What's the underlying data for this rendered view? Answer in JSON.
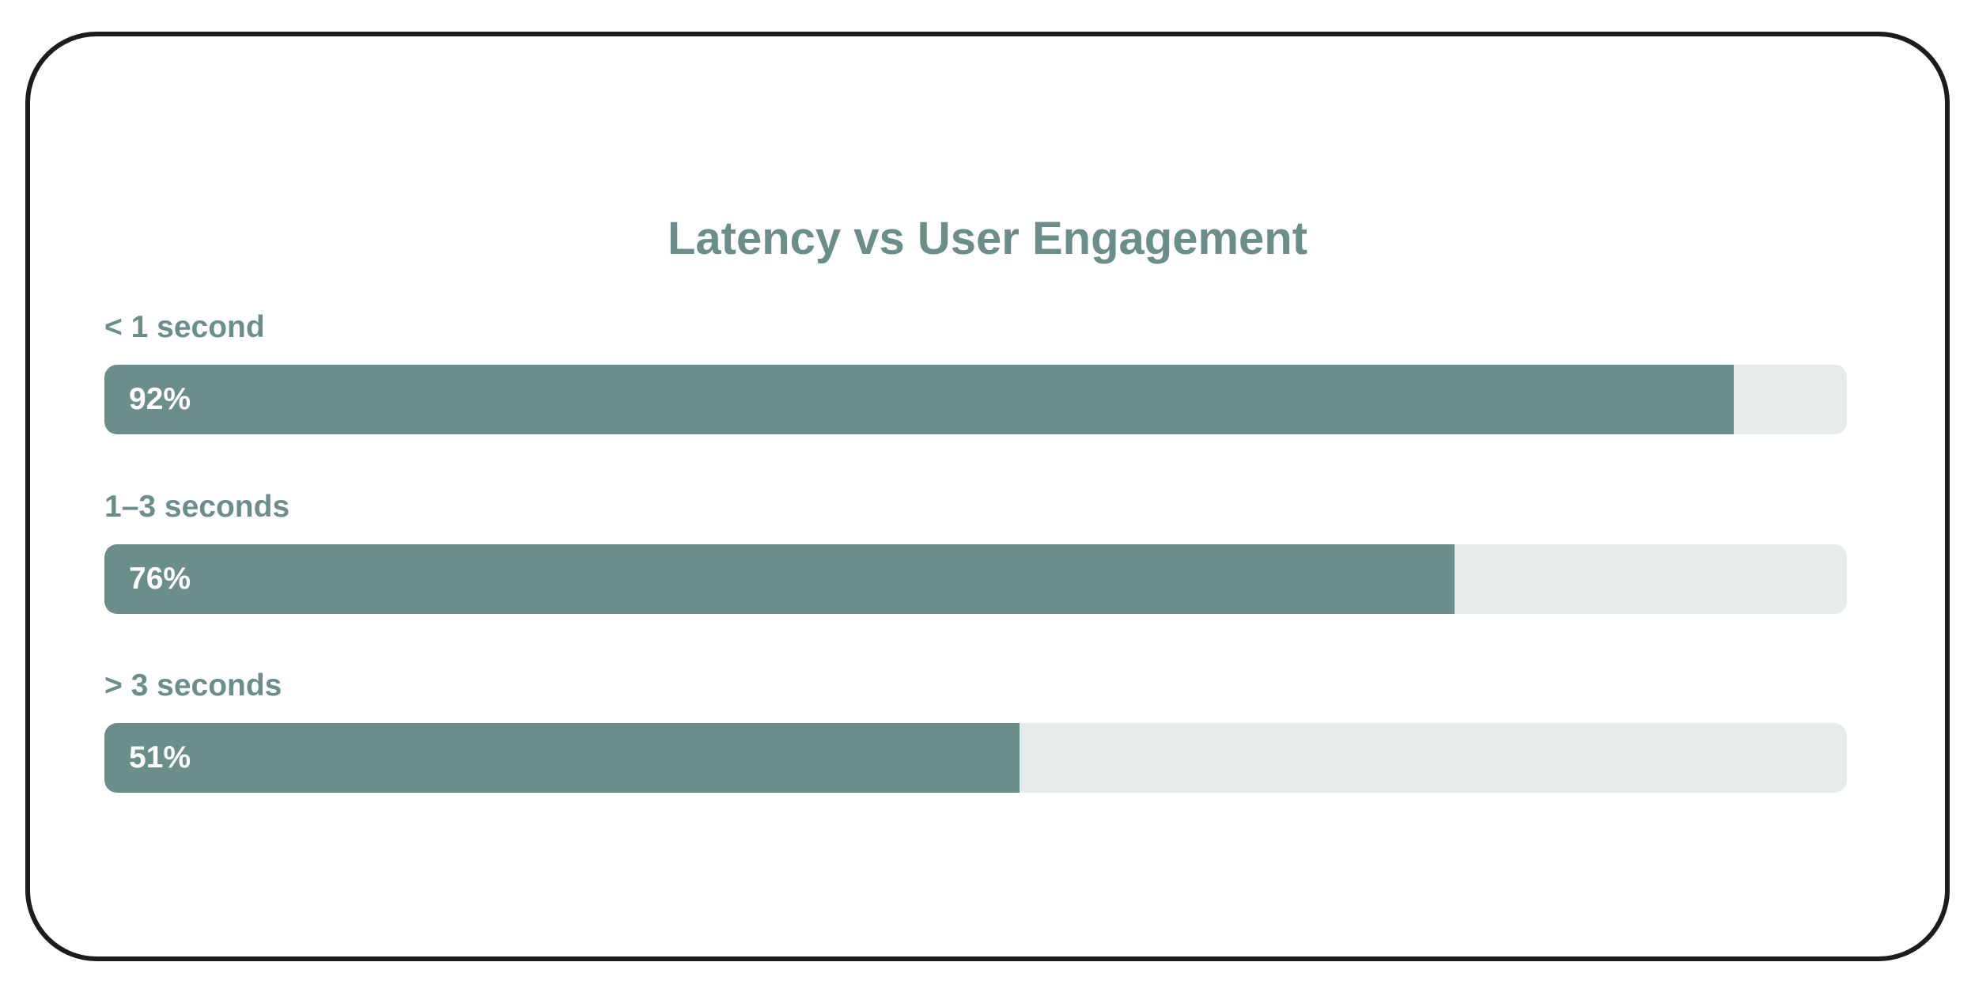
{
  "title": "Latency vs User Engagement",
  "colors": {
    "accent": "#6b8e8b",
    "track": "#e5eceb",
    "frame_border": "#1c1c1c",
    "bar_text": "#ffffff"
  },
  "bars": [
    {
      "label": "< 1 second",
      "value": 92,
      "value_label": "92%",
      "fill_width": "93.5%"
    },
    {
      "label": "1–3 seconds",
      "value": 76,
      "value_label": "76%",
      "fill_width": "77.5%"
    },
    {
      "label": "> 3 seconds",
      "value": 51,
      "value_label": "51%",
      "fill_width": "52.5%"
    }
  ],
  "chart_data": {
    "type": "bar",
    "orientation": "horizontal",
    "title": "Latency vs User Engagement",
    "categories": [
      "< 1 second",
      "1–3 seconds",
      "> 3 seconds"
    ],
    "values": [
      92,
      76,
      51
    ],
    "value_labels": [
      "92%",
      "76%",
      "51%"
    ],
    "xlabel": "",
    "ylabel": "",
    "xlim": [
      0,
      100
    ],
    "unit": "%",
    "grid": false,
    "legend": null
  }
}
